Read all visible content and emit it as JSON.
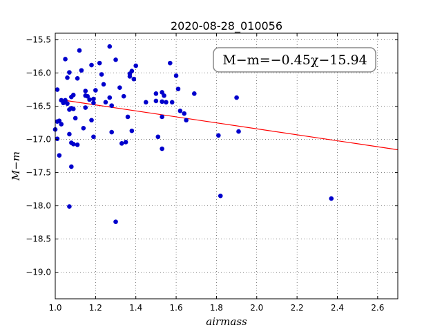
{
  "chart_data": {
    "type": "scatter",
    "title": "2020-08-28_010056",
    "xlabel": "airmass",
    "ylabel": "M−m",
    "xlim": [
      1.0,
      2.7
    ],
    "ylim": [
      -15.4,
      -19.4
    ],
    "y_inverted": true,
    "grid": true,
    "grid_style": "dotted",
    "x_ticks": [
      1.0,
      1.2,
      1.4,
      1.6,
      1.8,
      2.0,
      2.2,
      2.4,
      2.6
    ],
    "x_tick_labels": [
      "1.0",
      "1.2",
      "1.4",
      "1.6",
      "1.8",
      "2.0",
      "2.2",
      "2.4",
      "2.6"
    ],
    "y_ticks": [
      -15.5,
      -16.0,
      -16.5,
      -17.0,
      -17.5,
      -18.0,
      -18.5,
      -19.0
    ],
    "y_tick_labels": [
      "−15.5",
      "−16.0",
      "−16.5",
      "−17.0",
      "−17.5",
      "−18.0",
      "−18.5",
      "−19.0"
    ],
    "annotation": "M−m=−0.45χ−15.94",
    "fit": {
      "slope": -0.45,
      "intercept": -15.94,
      "color": "#ff0000"
    },
    "point_color": "#0000cc",
    "points": [
      [
        1.0,
        -16.85
      ],
      [
        1.01,
        -16.25
      ],
      [
        1.01,
        -16.73
      ],
      [
        1.01,
        -16.99
      ],
      [
        1.02,
        -16.72
      ],
      [
        1.02,
        -17.24
      ],
      [
        1.03,
        -16.41
      ],
      [
        1.03,
        -16.77
      ],
      [
        1.04,
        -16.45
      ],
      [
        1.05,
        -16.41
      ],
      [
        1.05,
        -15.79
      ],
      [
        1.06,
        -16.46
      ],
      [
        1.06,
        -16.07
      ],
      [
        1.07,
        -15.99
      ],
      [
        1.07,
        -16.55
      ],
      [
        1.07,
        -16.92
      ],
      [
        1.07,
        -18.01
      ],
      [
        1.08,
        -16.36
      ],
      [
        1.08,
        -16.53
      ],
      [
        1.08,
        -17.05
      ],
      [
        1.08,
        -17.41
      ],
      [
        1.09,
        -16.33
      ],
      [
        1.09,
        -16.54
      ],
      [
        1.09,
        -17.07
      ],
      [
        1.1,
        -16.68
      ],
      [
        1.11,
        -16.08
      ],
      [
        1.11,
        -17.08
      ],
      [
        1.12,
        -15.66
      ],
      [
        1.13,
        -15.96
      ],
      [
        1.14,
        -16.83
      ],
      [
        1.15,
        -16.34
      ],
      [
        1.15,
        -16.27
      ],
      [
        1.15,
        -16.52
      ],
      [
        1.16,
        -16.35
      ],
      [
        1.17,
        -16.4
      ],
      [
        1.18,
        -15.88
      ],
      [
        1.18,
        -16.71
      ],
      [
        1.19,
        -16.39
      ],
      [
        1.19,
        -16.45
      ],
      [
        1.19,
        -16.96
      ],
      [
        1.2,
        -16.26
      ],
      [
        1.22,
        -15.85
      ],
      [
        1.23,
        -16.02
      ],
      [
        1.24,
        -16.17
      ],
      [
        1.25,
        -16.44
      ],
      [
        1.27,
        -15.6
      ],
      [
        1.27,
        -16.37
      ],
      [
        1.28,
        -16.49
      ],
      [
        1.28,
        -16.89
      ],
      [
        1.3,
        -15.8
      ],
      [
        1.3,
        -18.24
      ],
      [
        1.32,
        -16.22
      ],
      [
        1.33,
        -17.06
      ],
      [
        1.34,
        -16.35
      ],
      [
        1.35,
        -17.04
      ],
      [
        1.36,
        -16.66
      ],
      [
        1.37,
        -16.05
      ],
      [
        1.37,
        -16.01
      ],
      [
        1.38,
        -15.97
      ],
      [
        1.38,
        -16.87
      ],
      [
        1.39,
        -16.09
      ],
      [
        1.4,
        -15.89
      ],
      [
        1.45,
        -16.44
      ],
      [
        1.5,
        -16.31
      ],
      [
        1.5,
        -16.42
      ],
      [
        1.51,
        -16.96
      ],
      [
        1.53,
        -16.29
      ],
      [
        1.53,
        -16.43
      ],
      [
        1.53,
        -16.66
      ],
      [
        1.53,
        -17.14
      ],
      [
        1.54,
        -16.34
      ],
      [
        1.55,
        -16.44
      ],
      [
        1.57,
        -15.85
      ],
      [
        1.58,
        -16.44
      ],
      [
        1.6,
        -16.04
      ],
      [
        1.61,
        -16.24
      ],
      [
        1.62,
        -16.57
      ],
      [
        1.64,
        -16.61
      ],
      [
        1.65,
        -16.71
      ],
      [
        1.69,
        -16.31
      ],
      [
        1.81,
        -16.94
      ],
      [
        1.82,
        -17.85
      ],
      [
        1.9,
        -16.37
      ],
      [
        1.91,
        -16.88
      ],
      [
        2.37,
        -17.89
      ]
    ]
  }
}
